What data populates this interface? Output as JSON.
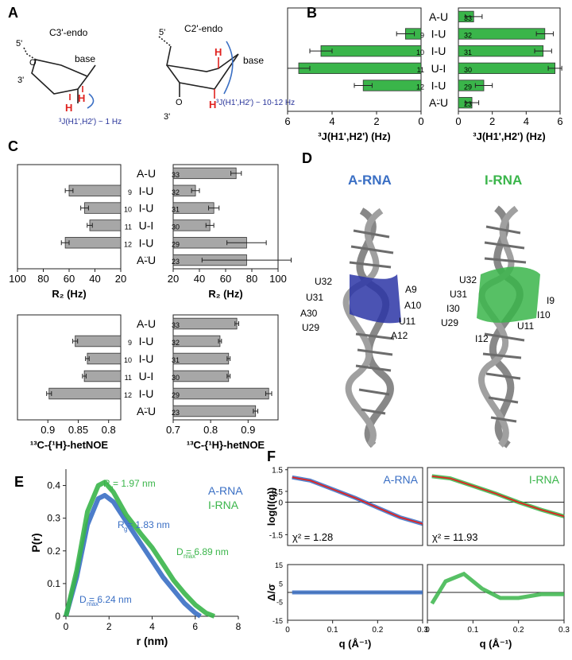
{
  "panel_letters": [
    "A",
    "B",
    "C",
    "D",
    "E",
    "F"
  ],
  "panel_a": {
    "c3_label": "C3'-endo",
    "c2_label": "C2'-endo",
    "base_label": "base",
    "five_prime": "5'",
    "three_prime": "3'",
    "o_label": "O",
    "h_label": "H",
    "j_small": "³J(H1',H2') ~ 1 Hz",
    "j_large": "³J(H1',H2') ~ 10-12 Hz"
  },
  "pairs": [
    {
      "left": "A-U",
      "num_left": "",
      "num_right": "33"
    },
    {
      "left": "I-U",
      "num_left": "9",
      "num_right": "32"
    },
    {
      "left": "I-U",
      "num_left": "10",
      "num_right": "31"
    },
    {
      "left": "U-I",
      "num_left": "11",
      "num_right": "30"
    },
    {
      "left": "I-U",
      "num_left": "12",
      "num_right": "29"
    },
    {
      "left": "A-U",
      "num_left": "",
      "num_right": "23"
    }
  ],
  "pair_dots": "..",
  "xlabels": {
    "j": "³J(H1',H2') (Hz)",
    "r2": "R₂ (Hz)",
    "noe": "¹³C-{¹H}-hetNOE"
  },
  "panel_d": {
    "a_title": "A-RNA",
    "i_title": "I-RNA",
    "a_labels": [
      "U32",
      "U31",
      "A30",
      "U29",
      "A9",
      "A10",
      "U11",
      "A12"
    ],
    "i_labels": [
      "U32",
      "U31",
      "I30",
      "U29",
      "I9",
      "I10",
      "U11",
      "I12"
    ]
  },
  "panel_e": {
    "legend_a": "A-RNA",
    "legend_i": "I-RNA",
    "rg_i": "R  = 1.97 nm",
    "rg_a": "R  = 1.83 nm",
    "dmax_i": "D     = 6.89 nm",
    "dmax_a": "D     = 6.24 nm",
    "sub_g": "g",
    "sub_max": "max"
  },
  "panel_f": {
    "left_title": "A-RNA",
    "right_title": "I-RNA",
    "chi_left": "χ² = 1.28",
    "chi_right": "χ² = 11.93"
  },
  "colors": {
    "green": "#3ab54a",
    "blue": "#3a6fc4",
    "red": "#e0221f",
    "gray": "#a7a7a7",
    "navy": "#28349a"
  },
  "chart_data": [
    {
      "id": "B-left",
      "type": "bar",
      "orientation": "horizontal",
      "xlabel": "³J(H1',H2') (Hz)",
      "xlim": [
        6,
        0
      ],
      "xticks": [
        6,
        4,
        2,
        0
      ],
      "categories": [
        "I-U 9",
        "I-U 10",
        "U-I 11",
        "I-U 12"
      ],
      "values": [
        0.7,
        4.5,
        5.5,
        2.6
      ],
      "errors": [
        0.4,
        0.5,
        0.5,
        0.4
      ]
    },
    {
      "id": "B-right",
      "type": "bar",
      "orientation": "horizontal",
      "xlabel": "³J(H1',H2') (Hz)",
      "xlim": [
        0,
        6
      ],
      "xticks": [
        0,
        2,
        4,
        6
      ],
      "categories": [
        "A-U 33",
        "I-U 32",
        "I-U 31",
        "U-I 30",
        "I-U 29",
        "A-U 23"
      ],
      "values": [
        0.9,
        5.1,
        5.0,
        5.7,
        1.5,
        0.8
      ],
      "errors": [
        0.5,
        0.5,
        0.5,
        0.4,
        0.5,
        0.4
      ]
    },
    {
      "id": "C-R2-left",
      "type": "bar",
      "orientation": "horizontal",
      "xlabel": "R₂ (Hz)",
      "xlim": [
        100,
        20
      ],
      "xticks": [
        100,
        80,
        60,
        40,
        20
      ],
      "categories": [
        "I-U 9",
        "I-U 10",
        "U-I 11",
        "I-U 12"
      ],
      "values": [
        60,
        48,
        44,
        63
      ],
      "errors": [
        3,
        3,
        2,
        3
      ]
    },
    {
      "id": "C-R2-right",
      "type": "bar",
      "orientation": "horizontal",
      "xlabel": "R₂ (Hz)",
      "xlim": [
        20,
        100
      ],
      "xticks": [
        20,
        40,
        60,
        80,
        100
      ],
      "categories": [
        "A-U 33",
        "I-U 32",
        "I-U 31",
        "U-I 30",
        "I-U 29",
        "A-U 23"
      ],
      "values": [
        68,
        37,
        51,
        48,
        76,
        76
      ],
      "errors": [
        4,
        3,
        4,
        3,
        15,
        34
      ]
    },
    {
      "id": "C-NOE-left",
      "type": "bar",
      "orientation": "horizontal",
      "xlabel": "¹³C-{¹H}-hetNOE",
      "xlim": [
        0.95,
        0.78
      ],
      "xticks": [
        0.9,
        0.85,
        0.8
      ],
      "categories": [
        "I-U 9",
        "I-U 10",
        "U-I 11",
        "I-U 12"
      ],
      "values": [
        0.855,
        0.835,
        0.84,
        0.898
      ],
      "errors": [
        0.004,
        0.003,
        0.003,
        0.004
      ]
    },
    {
      "id": "C-NOE-right",
      "type": "bar",
      "orientation": "horizontal",
      "xlabel": "¹³C-{¹H}-hetNOE",
      "xlim": [
        0.7,
        0.98
      ],
      "xticks": [
        0.7,
        0.8,
        0.9
      ],
      "categories": [
        "A-U 33",
        "I-U 32",
        "I-U 31",
        "U-I 30",
        "I-U 29",
        "A-U 23"
      ],
      "values": [
        0.87,
        0.825,
        0.848,
        0.848,
        0.955,
        0.92
      ],
      "errors": [
        0.005,
        0.004,
        0.004,
        0.004,
        0.008,
        0.006
      ]
    },
    {
      "id": "E",
      "type": "line",
      "xlabel": "r (nm)",
      "ylabel": "P(r)",
      "xlim": [
        0,
        8
      ],
      "ylim": [
        0,
        0.45
      ],
      "xticks": [
        0,
        2,
        4,
        6,
        8
      ],
      "yticks": [
        0,
        0.1,
        0.2,
        0.3,
        0.4
      ],
      "series": [
        {
          "name": "A-RNA",
          "x": [
            0,
            0.5,
            1,
            1.5,
            1.8,
            2.2,
            2.8,
            3.5,
            4,
            4.5,
            5,
            5.5,
            6,
            6.24
          ],
          "y": [
            0,
            0.12,
            0.28,
            0.36,
            0.37,
            0.35,
            0.29,
            0.22,
            0.17,
            0.12,
            0.08,
            0.04,
            0.01,
            0
          ]
        },
        {
          "name": "I-RNA",
          "x": [
            0,
            0.5,
            1,
            1.5,
            1.8,
            2.2,
            2.8,
            3.5,
            4,
            4.5,
            5,
            5.5,
            6,
            6.5,
            6.89
          ],
          "y": [
            0,
            0.14,
            0.32,
            0.4,
            0.41,
            0.38,
            0.31,
            0.25,
            0.21,
            0.16,
            0.11,
            0.07,
            0.035,
            0.01,
            0
          ]
        }
      ]
    },
    {
      "id": "F-top-left",
      "type": "scatter",
      "xlabel": "",
      "ylabel": "log(I(q))",
      "xlim": [
        0,
        0.3
      ],
      "ylim": [
        -2,
        1.6
      ],
      "yticks": [
        1.5,
        0.5,
        0,
        -1.5
      ],
      "series": [
        {
          "name": "A-RNA",
          "q": [
            0.01,
            0.05,
            0.1,
            0.15,
            0.2,
            0.25,
            0.3
          ],
          "v": [
            1.15,
            1.0,
            0.6,
            0.2,
            -0.25,
            -0.7,
            -1.0
          ]
        }
      ]
    },
    {
      "id": "F-top-right",
      "type": "scatter",
      "xlabel": "",
      "ylabel": "",
      "xlim": [
        0,
        0.3
      ],
      "ylim": [
        -2,
        1.6
      ],
      "series": [
        {
          "name": "I-RNA",
          "q": [
            0.01,
            0.05,
            0.1,
            0.15,
            0.2,
            0.25,
            0.3
          ],
          "v": [
            1.2,
            1.1,
            0.75,
            0.4,
            0.0,
            -0.35,
            -0.65
          ]
        }
      ]
    },
    {
      "id": "F-bottom",
      "type": "scatter",
      "xlabel": "q (Å⁻¹)",
      "ylabel": "Δ/σ",
      "xlim": [
        0,
        0.3
      ],
      "ylim": [
        -15,
        15
      ],
      "xticks": [
        0,
        0.1,
        0.2,
        0.3
      ],
      "yticks": [
        15,
        5,
        -5,
        -15
      ],
      "series": [
        {
          "name": "A-RNA",
          "q": [
            0.01,
            0.05,
            0.1,
            0.15,
            0.2,
            0.25,
            0.3
          ],
          "v": [
            0,
            0,
            0,
            0,
            0,
            0,
            0
          ]
        },
        {
          "name": "I-RNA",
          "q": [
            0.01,
            0.04,
            0.08,
            0.12,
            0.16,
            0.2,
            0.25,
            0.3
          ],
          "v": [
            -6,
            6,
            10,
            2,
            -3,
            -3,
            -1,
            -1
          ]
        }
      ]
    }
  ]
}
